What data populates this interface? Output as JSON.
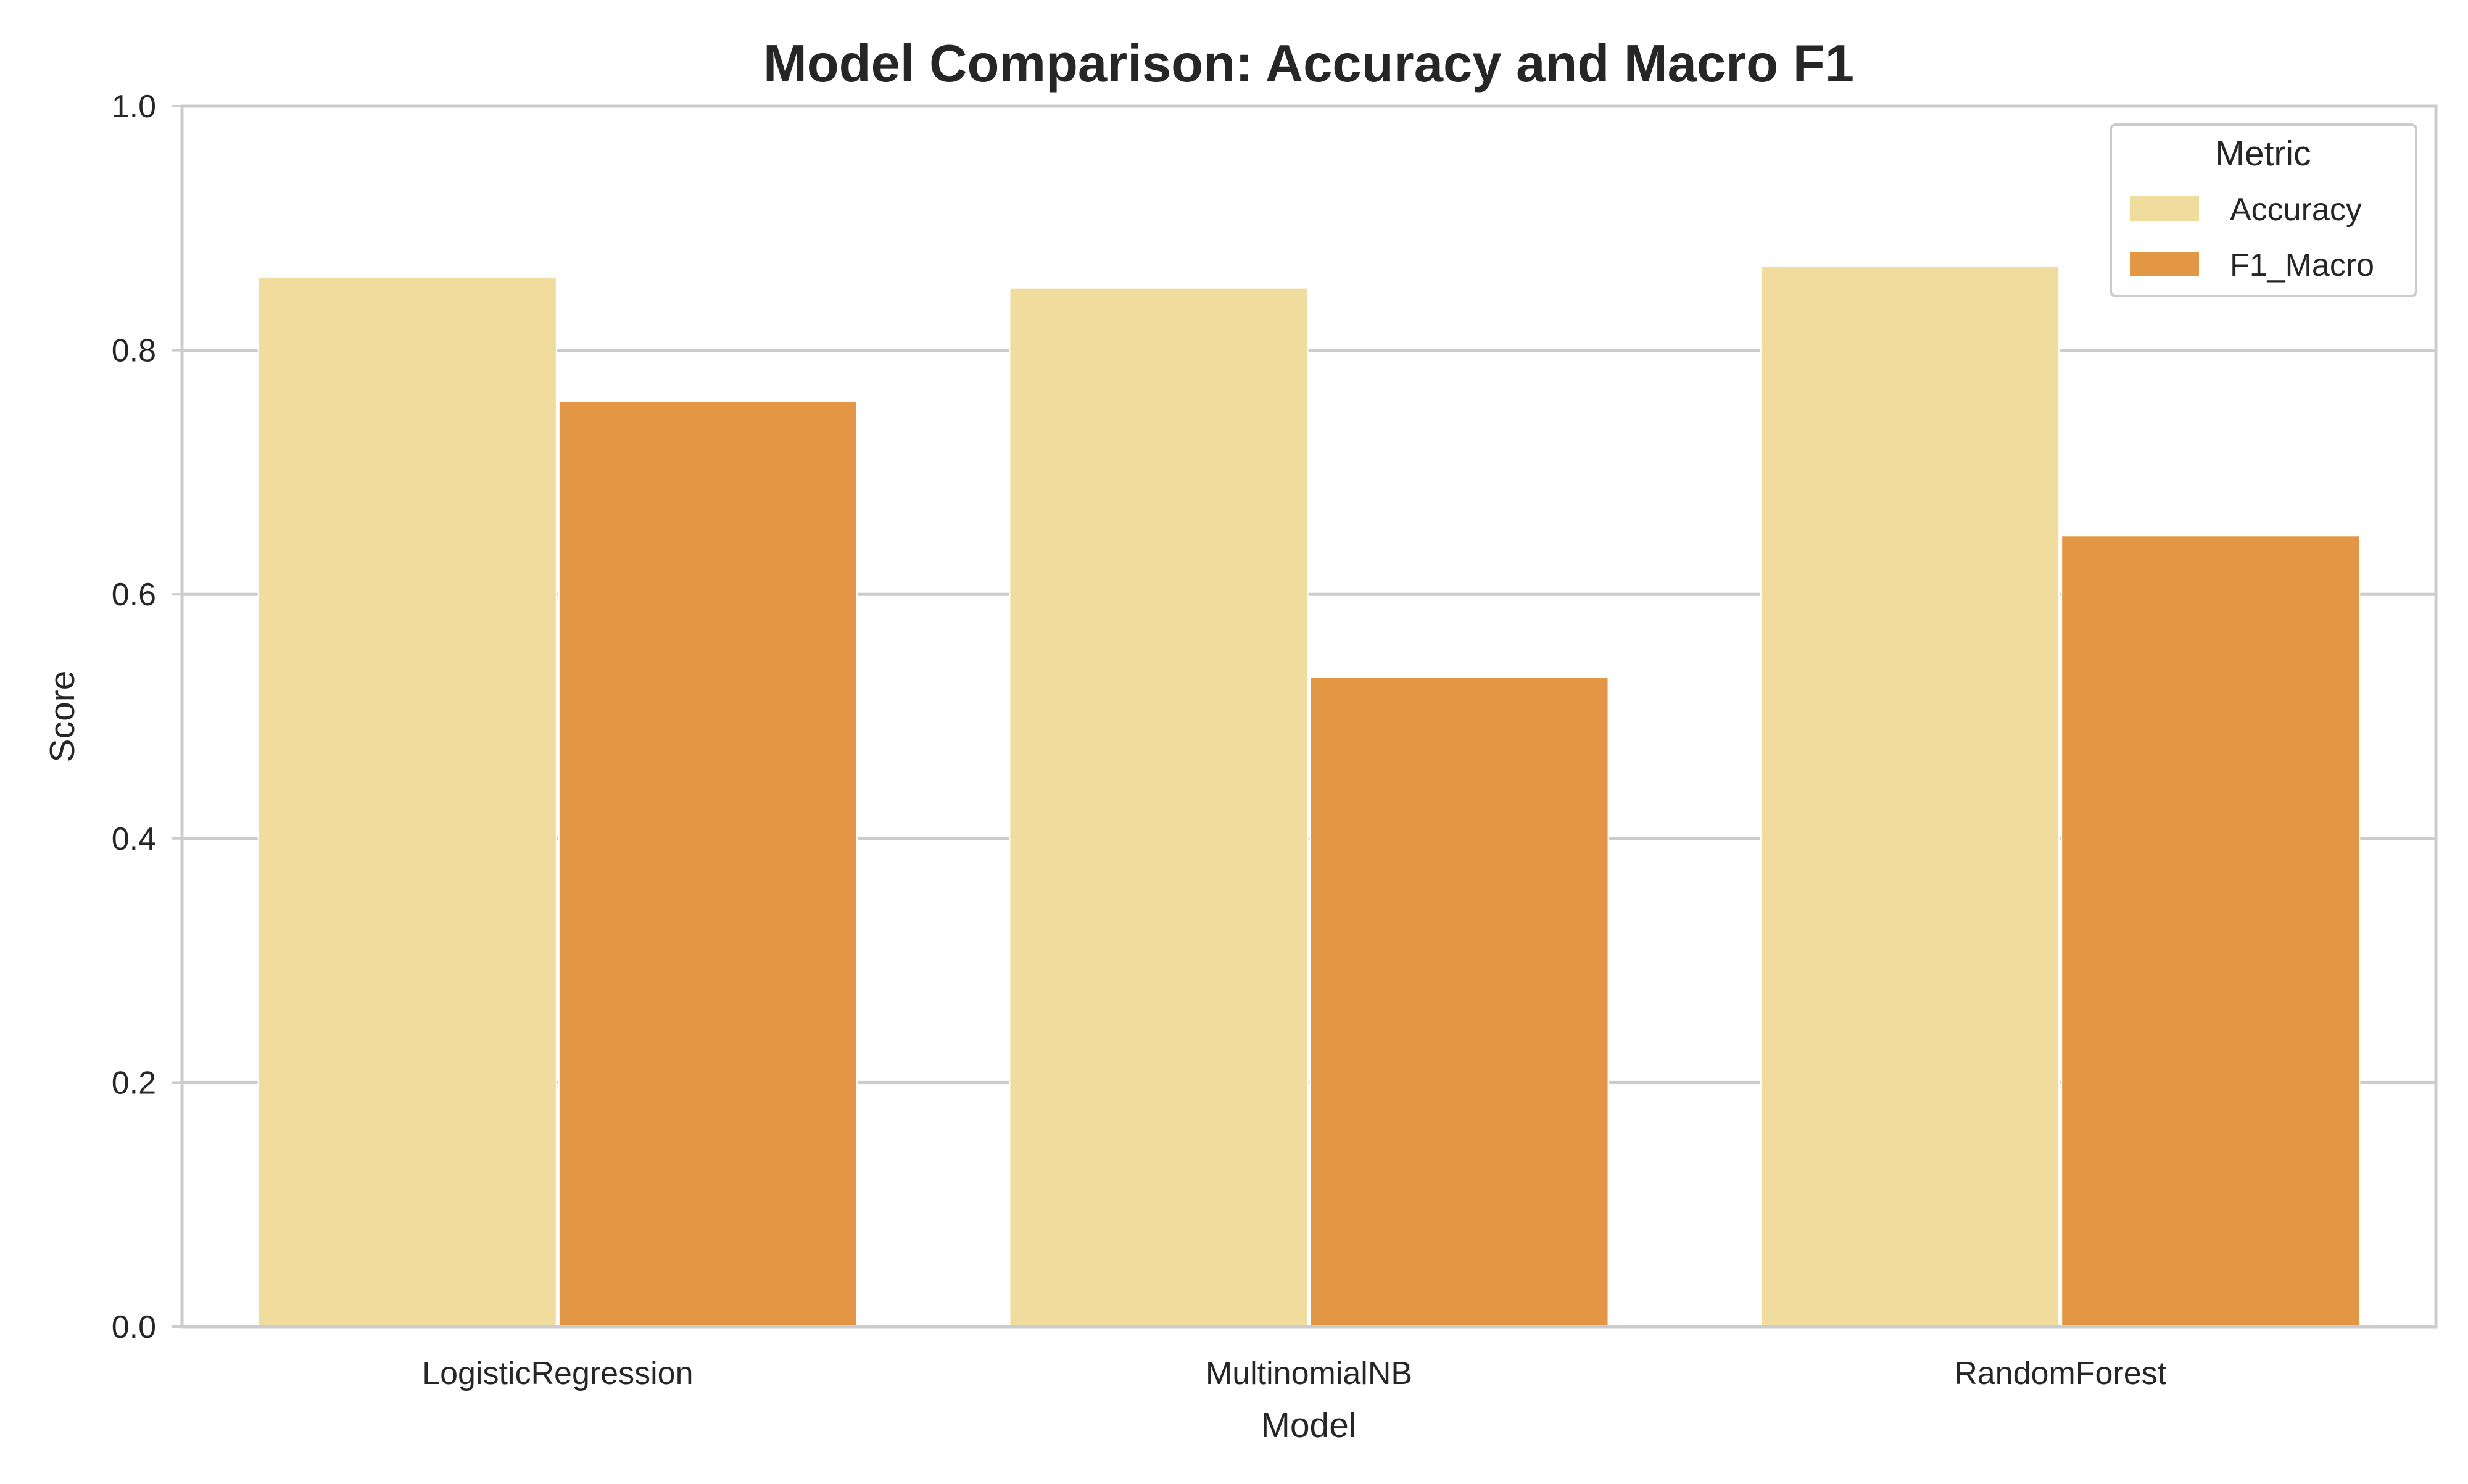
{
  "chart_data": {
    "type": "bar",
    "title": "Model Comparison: Accuracy and Macro F1",
    "xlabel": "Model",
    "ylabel": "Score",
    "categories": [
      "LogisticRegression",
      "MultinomialNB",
      "RandomForest"
    ],
    "series": [
      {
        "name": "Accuracy",
        "color": "#f0dc9c",
        "values": [
          0.86,
          0.851,
          0.869
        ]
      },
      {
        "name": "F1_Macro",
        "color": "#e39744",
        "values": [
          0.758,
          0.532,
          0.648
        ]
      }
    ],
    "ylim": [
      0,
      1.0
    ],
    "yticks": [
      "0.0",
      "0.2",
      "0.4",
      "0.6",
      "0.8",
      "1.0"
    ],
    "grid": "horizontal",
    "legend": {
      "title": "Metric",
      "position": "top-right"
    },
    "colors": {
      "grid": "#cccccc",
      "axis": "#cccccc",
      "text": "#262626"
    }
  }
}
